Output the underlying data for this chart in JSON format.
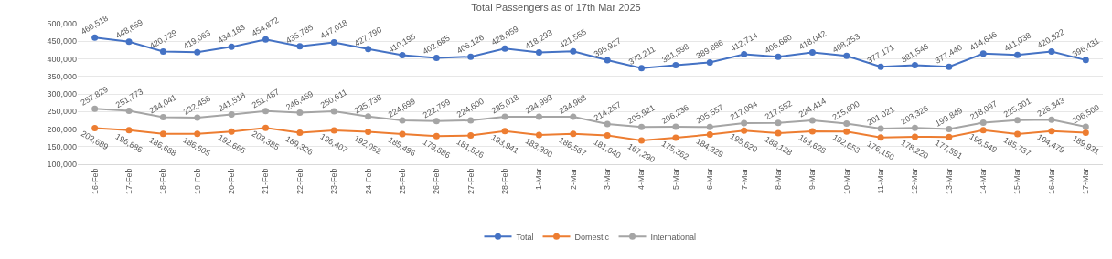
{
  "chart_data": {
    "type": "line",
    "title": "Total Passengers as of 17th Mar 2025",
    "categories": [
      "16-Feb",
      "17-Feb",
      "18-Feb",
      "19-Feb",
      "20-Feb",
      "21-Feb",
      "22-Feb",
      "23-Feb",
      "24-Feb",
      "25-Feb",
      "26-Feb",
      "27-Feb",
      "28-Feb",
      "1-Mar",
      "2-Mar",
      "3-Mar",
      "4-Mar",
      "5-Mar",
      "6-Mar",
      "7-Mar",
      "8-Mar",
      "9-Mar",
      "10-Mar",
      "11-Mar",
      "12-Mar",
      "13-Mar",
      "14-Mar",
      "15-Mar",
      "16-Mar",
      "17-Mar"
    ],
    "series": [
      {
        "name": "Total",
        "color": "#4472c4",
        "values": [
          460518,
          448659,
          420729,
          419063,
          434183,
          454872,
          435785,
          447018,
          427790,
          410195,
          402685,
          406126,
          428959,
          418293,
          421555,
          395927,
          373211,
          381598,
          389886,
          412714,
          405680,
          418042,
          408253,
          377171,
          381546,
          377440,
          414646,
          411038,
          420822,
          396431
        ],
        "value_labels": [
          "460,518",
          "448,659",
          "420,729",
          "419,063",
          "434,183",
          "454,872",
          "435,785",
          "447,018",
          "427,790",
          "410,195",
          "402,685",
          "406,126",
          "428,959",
          "418,293",
          "421,555",
          "395,927",
          "373,211",
          "381,598",
          "389,886",
          "412,714",
          "405,680",
          "418,042",
          "408,253",
          "377,171",
          "381,546",
          "377,440",
          "414,646",
          "411,038",
          "420,822",
          "396,431"
        ]
      },
      {
        "name": "Domestic",
        "color": "#ed7d31",
        "values": [
          202689,
          196886,
          186688,
          186605,
          192665,
          203385,
          189326,
          196407,
          192052,
          185496,
          179886,
          181526,
          193941,
          183300,
          186587,
          181640,
          167290,
          175362,
          184329,
          195620,
          188128,
          193628,
          192653,
          176150,
          178220,
          177591,
          196549,
          185737,
          194479,
          189931
        ],
        "value_labels": [
          "202,689",
          "196,886",
          "186,688",
          "186,605",
          "192,665",
          "203,385",
          "189,326",
          "196,407",
          "192,052",
          "185,496",
          "179,886",
          "181,526",
          "193,941",
          "183,300",
          "186,587",
          "181,640",
          "167,290",
          "175,362",
          "184,329",
          "195,620",
          "188,128",
          "193,628",
          "192,653",
          "176,150",
          "178,220",
          "177,591",
          "196,549",
          "185,737",
          "194,479",
          "189,931"
        ]
      },
      {
        "name": "International",
        "color": "#a5a5a5",
        "values": [
          257829,
          251773,
          234041,
          232458,
          241518,
          251487,
          246459,
          250611,
          235738,
          224699,
          222799,
          224600,
          235018,
          234993,
          234968,
          214287,
          205921,
          206236,
          205557,
          217094,
          217552,
          224414,
          215600,
          201021,
          203326,
          199849,
          218097,
          225301,
          226343,
          206500
        ],
        "value_labels": [
          "257,829",
          "251,773",
          "234,041",
          "232,458",
          "241,518",
          "251,487",
          "246,459",
          "250,611",
          "235,738",
          "224,699",
          "222,799",
          "224,600",
          "235,018",
          "234,993",
          "234,968",
          "214,287",
          "205,921",
          "206,236",
          "205,557",
          "217,094",
          "217,552",
          "224,414",
          "215,600",
          "201,021",
          "203,326",
          "199,849",
          "218,097",
          "225,301",
          "226,343",
          "206,500"
        ]
      }
    ],
    "ylim": [
      100000,
      500000
    ],
    "yticks": [
      {
        "value": 100000,
        "label": "100,000"
      },
      {
        "value": 150000,
        "label": "150,000"
      },
      {
        "value": 200000,
        "label": "200,000"
      },
      {
        "value": 250000,
        "label": "250,000"
      },
      {
        "value": 300000,
        "label": "300,000"
      },
      {
        "value": 350000,
        "label": "350,000"
      },
      {
        "value": 400000,
        "label": "400,000"
      },
      {
        "value": 450000,
        "label": "450,000"
      },
      {
        "value": 500000,
        "label": "500,000"
      }
    ],
    "grid": "y",
    "legend": "bottom",
    "marker": "circle",
    "line_style": "solid"
  }
}
